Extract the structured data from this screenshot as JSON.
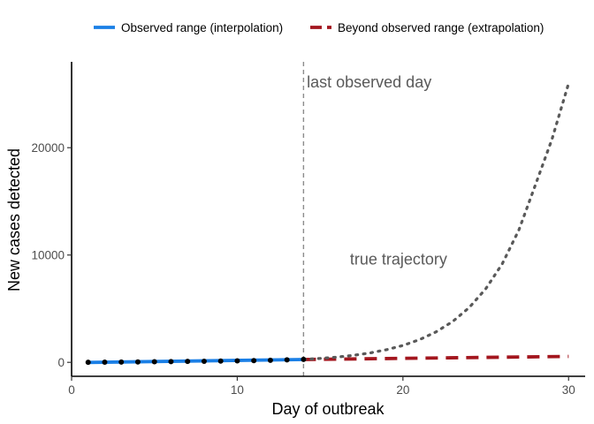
{
  "chart_data": {
    "type": "line",
    "title": "",
    "xlabel": "Day of outbreak",
    "ylabel": "New cases detected",
    "xlim": [
      0,
      31
    ],
    "ylim": [
      -1300,
      28000
    ],
    "x_ticks": [
      0,
      10,
      20,
      30
    ],
    "y_ticks": [
      0,
      10000,
      20000
    ],
    "grid": false,
    "legend_position": "top",
    "legend": [
      {
        "label": "Observed range (interpolation)",
        "color": "#1A7FE6",
        "style": "solid"
      },
      {
        "label": "Beyond observed range (extrapolation)",
        "color": "#A3161E",
        "style": "dashed"
      }
    ],
    "observed_points": {
      "x": [
        1,
        2,
        3,
        4,
        5,
        6,
        7,
        8,
        9,
        10,
        11,
        12,
        13,
        14
      ],
      "y": [
        10,
        20,
        30,
        40,
        55,
        70,
        85,
        100,
        120,
        140,
        165,
        195,
        230,
        270
      ]
    },
    "series": [
      {
        "name": "Observed range (interpolation)",
        "color": "#1A7FE6",
        "style": "solid",
        "x": [
          1,
          14
        ],
        "y": [
          -10,
          260
        ]
      },
      {
        "name": "Beyond observed range (extrapolation)",
        "color": "#A3161E",
        "style": "dashed",
        "x": [
          14,
          30
        ],
        "y": [
          260,
          550
        ]
      },
      {
        "name": "true trajectory",
        "color": "#595959",
        "style": "dotted",
        "x": [
          14,
          15,
          16,
          17,
          18,
          19,
          20,
          21,
          22,
          23,
          24,
          25,
          26,
          27,
          28,
          29,
          30
        ],
        "y": [
          270,
          362,
          486,
          652,
          875,
          1174,
          1575,
          2114,
          2836,
          3806,
          5106,
          6851,
          9192,
          12333,
          16548,
          20800,
          26000
        ]
      }
    ],
    "vline": {
      "x": 14,
      "label": "last observed day"
    },
    "annotations": [
      {
        "text": "last observed day",
        "x": 14.2,
        "y": 26100
      },
      {
        "text": "true trajectory",
        "x": 16.8,
        "y": 9600
      }
    ]
  }
}
